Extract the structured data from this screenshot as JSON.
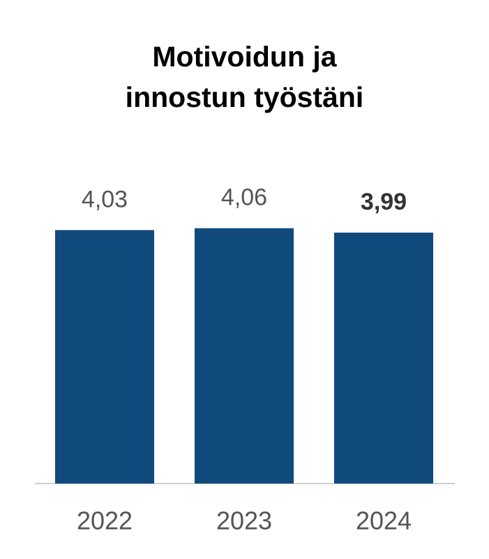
{
  "chart_data": {
    "type": "bar",
    "title": "Motivoidun ja innostun työstäni",
    "categories": [
      "2022",
      "2023",
      "2024"
    ],
    "values": [
      4.03,
      4.06,
      3.99
    ],
    "value_labels": [
      "4,03",
      "4,06",
      "3,99"
    ],
    "highlight_index": 2,
    "color": "#114a7c",
    "ylim": [
      0,
      4.5
    ]
  }
}
